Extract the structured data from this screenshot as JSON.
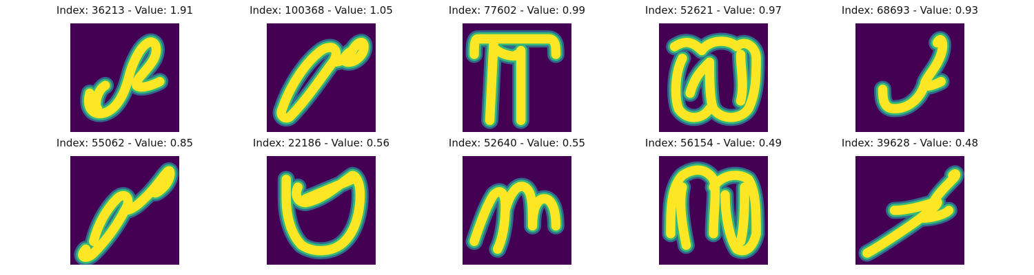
{
  "colors": {
    "background_cell": "#440154",
    "stroke_outer": "#31688e",
    "stroke_mid": "#35b779",
    "stroke_core": "#fde725"
  },
  "panels": [
    {
      "title": "Index: 36213 - Value: 1.91",
      "glyph": "loop-s"
    },
    {
      "title": "Index: 100368 - Value: 1.05",
      "glyph": "diagonal-loop"
    },
    {
      "title": "Index: 77602 - Value: 0.99",
      "glyph": "pi"
    },
    {
      "title": "Index: 52621 - Value: 0.97",
      "glyph": "omega"
    },
    {
      "title": "Index: 68693 - Value: 0.93",
      "glyph": "hook"
    },
    {
      "title": "Index: 55062 - Value: 0.85",
      "glyph": "diagonal-loop-2"
    },
    {
      "title": "Index: 22186 - Value: 0.56",
      "glyph": "cup"
    },
    {
      "title": "Index: 52640 - Value: 0.55",
      "glyph": "m"
    },
    {
      "title": "Index: 56154 - Value: 0.49",
      "glyph": "m-arch"
    },
    {
      "title": "Index: 39628 - Value: 0.48",
      "glyph": "z-slash"
    }
  ]
}
